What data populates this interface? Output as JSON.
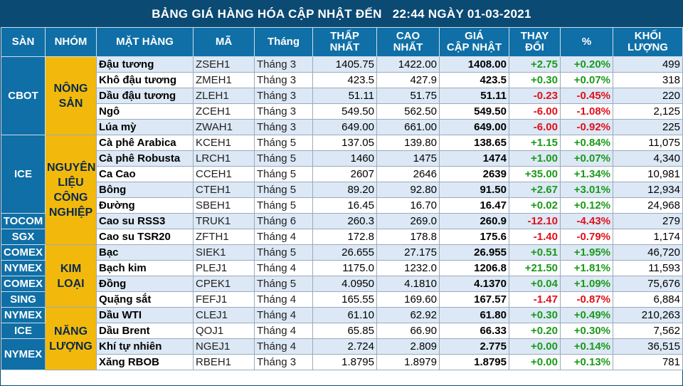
{
  "title": "BẢNG GIÁ HÀNG HÓA CẬP NHẬT ĐẾN   22:44 NGÀY 01-03-2021",
  "headers": [
    "SÀN",
    "NHÓM",
    "MẶT HÀNG",
    "MÃ",
    "Tháng",
    "THẤP\nNHẤT",
    "CAO\nNHẤT",
    "GIÁ\nCẬP NHẬT",
    "THAY\nĐỔI",
    "%",
    "KHỐI\nLƯỢNG"
  ],
  "exchanges": [
    {
      "label": "CBOT",
      "rows": 5
    },
    {
      "label": "ICE",
      "rows": 5
    },
    {
      "label": "TOCOM",
      "rows": 1
    },
    {
      "label": "SGX",
      "rows": 1
    },
    {
      "label": "COMEX",
      "rows": 1
    },
    {
      "label": "NYMEX",
      "rows": 1
    },
    {
      "label": "COMEX",
      "rows": 1
    },
    {
      "label": "SING",
      "rows": 1
    },
    {
      "label": "NYMEX",
      "rows": 1
    },
    {
      "label": "ICE",
      "rows": 1
    },
    {
      "label": "NYMEX",
      "rows": 2
    }
  ],
  "groups": [
    {
      "label": "NÔNG SẢN",
      "rows": 5
    },
    {
      "label": "NGUYÊN LIỆU CÔNG NGHIỆP",
      "rows": 7
    },
    {
      "label": "KIM LOẠI",
      "rows": 4
    },
    {
      "label": "NĂNG LƯỢNG",
      "rows": 4
    }
  ],
  "rows": [
    {
      "name": "Đậu tương",
      "code": "ZSEH1",
      "month": "Tháng 3",
      "low": "1405.75",
      "high": "1422.00",
      "price": "1408.00",
      "change": "+2.75",
      "pct": "+0.20%",
      "volume": "499",
      "dir": "up"
    },
    {
      "name": "Khô đậu tương",
      "code": "ZMEH1",
      "month": "Tháng 3",
      "low": "423.5",
      "high": "427.9",
      "price": "423.5",
      "change": "+0.30",
      "pct": "+0.07%",
      "volume": "318",
      "dir": "up"
    },
    {
      "name": "Dầu đậu tương",
      "code": "ZLEH1",
      "month": "Tháng 3",
      "low": "51.11",
      "high": "51.75",
      "price": "51.11",
      "change": "-0.23",
      "pct": "-0.45%",
      "volume": "220",
      "dir": "down"
    },
    {
      "name": "Ngô",
      "code": "ZCEH1",
      "month": "Tháng 3",
      "low": "549.50",
      "high": "562.50",
      "price": "549.50",
      "change": "-6.00",
      "pct": "-1.08%",
      "volume": "2,125",
      "dir": "down"
    },
    {
      "name": "Lúa mỳ",
      "code": "ZWAH1",
      "month": "Tháng 3",
      "low": "649.00",
      "high": "661.00",
      "price": "649.00",
      "change": "-6.00",
      "pct": "-0.92%",
      "volume": "225",
      "dir": "down"
    },
    {
      "name": "Cà phê Arabica",
      "code": "KCEH1",
      "month": "Tháng 5",
      "low": "137.05",
      "high": "139.80",
      "price": "138.65",
      "change": "+1.15",
      "pct": "+0.84%",
      "volume": "11,075",
      "dir": "up"
    },
    {
      "name": "Cà phê Robusta",
      "code": "LRCH1",
      "month": "Tháng 5",
      "low": "1460",
      "high": "1475",
      "price": "1474",
      "change": "+1.00",
      "pct": "+0.07%",
      "volume": "4,340",
      "dir": "up"
    },
    {
      "name": "Ca Cao",
      "code": "CCEH1",
      "month": "Tháng 5",
      "low": "2607",
      "high": "2646",
      "price": "2639",
      "change": "+35.00",
      "pct": "+1.34%",
      "volume": "10,981",
      "dir": "up"
    },
    {
      "name": "Bông",
      "code": "CTEH1",
      "month": "Tháng 5",
      "low": "89.20",
      "high": "92.80",
      "price": "91.50",
      "change": "+2.67",
      "pct": "+3.01%",
      "volume": "12,934",
      "dir": "up"
    },
    {
      "name": "Đường",
      "code": "SBEH1",
      "month": "Tháng 5",
      "low": "16.45",
      "high": "16.70",
      "price": "16.47",
      "change": "+0.02",
      "pct": "+0.12%",
      "volume": "24,968",
      "dir": "up"
    },
    {
      "name": "Cao su RSS3",
      "code": "TRUK1",
      "month": "Tháng 6",
      "low": "260.3",
      "high": "269.0",
      "price": "260.9",
      "change": "-12.10",
      "pct": "-4.43%",
      "volume": "279",
      "dir": "down"
    },
    {
      "name": "Cao su TSR20",
      "code": "ZFTH1",
      "month": "Tháng 4",
      "low": "172.8",
      "high": "178.8",
      "price": "175.6",
      "change": "-1.40",
      "pct": "-0.79%",
      "volume": "1,174",
      "dir": "down"
    },
    {
      "name": "Bạc",
      "code": "SIEK1",
      "month": "Tháng 5",
      "low": "26.655",
      "high": "27.175",
      "price": "26.955",
      "change": "+0.51",
      "pct": "+1.95%",
      "volume": "46,720",
      "dir": "up"
    },
    {
      "name": "Bạch kim",
      "code": "PLEJ1",
      "month": "Tháng 4",
      "low": "1175.0",
      "high": "1232.0",
      "price": "1206.8",
      "change": "+21.50",
      "pct": "+1.81%",
      "volume": "11,593",
      "dir": "up"
    },
    {
      "name": "Đồng",
      "code": "CPEK1",
      "month": "Tháng 5",
      "low": "4.0950",
      "high": "4.1810",
      "price": "4.1370",
      "change": "+0.04",
      "pct": "+1.09%",
      "volume": "75,676",
      "dir": "up"
    },
    {
      "name": "Quặng sắt",
      "code": "FEFJ1",
      "month": "Tháng 4",
      "low": "165.55",
      "high": "169.60",
      "price": "167.57",
      "change": "-1.47",
      "pct": "-0.87%",
      "volume": "6,884",
      "dir": "down"
    },
    {
      "name": "Dầu WTI",
      "code": "CLEJ1",
      "month": "Tháng 4",
      "low": "61.10",
      "high": "62.92",
      "price": "61.80",
      "change": "+0.30",
      "pct": "+0.49%",
      "volume": "210,263",
      "dir": "up"
    },
    {
      "name": "Dầu Brent",
      "code": "QOJ1",
      "month": "Tháng 4",
      "low": "65.85",
      "high": "66.90",
      "price": "66.33",
      "change": "+0.20",
      "pct": "+0.30%",
      "volume": "7,562",
      "dir": "up"
    },
    {
      "name": "Khí tự nhiên",
      "code": "NGEJ1",
      "month": "Tháng 4",
      "low": "2.724",
      "high": "2.809",
      "price": "2.775",
      "change": "+0.00",
      "pct": "+0.14%",
      "volume": "36,515",
      "dir": "up"
    },
    {
      "name": "Xăng RBOB",
      "code": "RBEH1",
      "month": "Tháng 3",
      "low": "1.8795",
      "high": "1.8979",
      "price": "1.8795",
      "change": "+0.00",
      "pct": "+0.13%",
      "volume": "781",
      "dir": "up"
    }
  ],
  "colors": {
    "header": "#0f6fa6",
    "title": "#0a4a73",
    "group": "#f2b90c",
    "up": "#1a9a1a",
    "down": "#e0101a",
    "stripe": "#dce8f5"
  }
}
